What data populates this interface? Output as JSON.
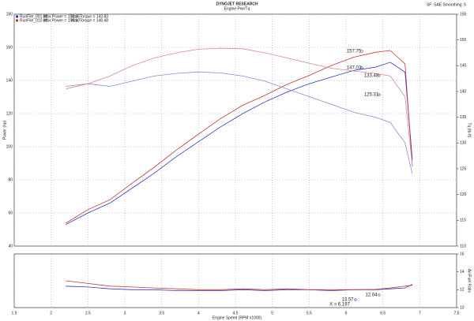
{
  "header": {
    "title": "DYNOJET RESEARCH",
    "subtitle": "Engine Pwr/Tq",
    "settings": "SF: SAE  Smoothing: 5"
  },
  "legend_notes": [
    [
      "Max Power = 151.65",
      "Max Torque = 143.83"
    ],
    [
      "Max Power = 158.10",
      "Max Torque = 148.48"
    ]
  ],
  "annotations": [
    "157.75",
    "147.03",
    "133.48",
    "125.31",
    "12.04",
    "13.57",
    "X = 6.197"
  ],
  "chart_data": [
    {
      "type": "line",
      "xlabel": "Engine Speed (RPM x1000)",
      "ylabel": "Power (hp)",
      "y2label": "Tq (lb-ft)",
      "x": [
        2.2,
        2.5,
        2.8,
        3.1,
        3.4,
        3.7,
        4.0,
        4.3,
        4.6,
        4.9,
        5.2,
        5.5,
        5.8,
        6.1,
        6.4,
        6.6,
        6.8,
        6.9
      ],
      "xlim": [
        1.5,
        7.5
      ],
      "xticks": [
        1.5,
        2.0,
        2.5,
        3.0,
        3.5,
        4.0,
        4.5,
        5.0,
        5.5,
        6.0,
        6.5,
        7.0,
        7.5
      ],
      "ylim": [
        40,
        180
      ],
      "yticks": [
        40,
        60,
        80,
        100,
        120,
        140,
        160,
        180
      ],
      "y2lim": [
        110,
        155
      ],
      "y2ticks": [
        110,
        115,
        120,
        125,
        130,
        135,
        140,
        145,
        150,
        155
      ],
      "grid": true,
      "series": [
        {
          "name": "RunFile_001.drf",
          "color": "#3535c8",
          "values": [
            53,
            60,
            66,
            75,
            84,
            94,
            103,
            112,
            120,
            127,
            133,
            138,
            142,
            146,
            148,
            151,
            145,
            92
          ]
        },
        {
          "name": "RunFile_010.drf",
          "color": "#c83535",
          "values": [
            53.8,
            62,
            68,
            78,
            87.6,
            98,
            107.6,
            117,
            125,
            131,
            137.6,
            143,
            149,
            154,
            157,
            158.1,
            150,
            88
          ]
        },
        {
          "color": "#8a8ad8",
          "axis": "y2",
          "values": [
            141,
            141.5,
            141,
            142,
            143,
            143.5,
            143.8,
            143.6,
            143,
            142,
            140.5,
            139,
            137.5,
            136,
            135,
            134,
            130,
            124
          ]
        },
        {
          "color": "#d88a8a",
          "axis": "y2",
          "values": [
            140.5,
            141.5,
            143,
            145,
            146.5,
            147.5,
            148.2,
            148.4,
            148.3,
            147.5,
            146.5,
            145.5,
            144.5,
            144,
            143.5,
            143,
            139,
            125.6
          ]
        }
      ]
    },
    {
      "type": "line",
      "ylabel": "Air/Fuel Ratio",
      "x": [
        2.2,
        2.5,
        2.8,
        3.1,
        3.4,
        3.7,
        4.0,
        4.3,
        4.6,
        4.9,
        5.2,
        5.5,
        5.8,
        6.1,
        6.4,
        6.6,
        6.8,
        6.9
      ],
      "xlim": [
        1.5,
        7.5
      ],
      "xticks": [
        1.5,
        2.0,
        2.5,
        3.0,
        3.5,
        4.0,
        4.5,
        5.0,
        5.5,
        6.0,
        6.5,
        7.0,
        7.5
      ],
      "ylim": [
        10,
        16
      ],
      "yticks": [
        10,
        12,
        14,
        16
      ],
      "series": [
        {
          "color": "#3535c8",
          "values": [
            12.4,
            12.3,
            12.1,
            12.0,
            12.0,
            11.9,
            11.9,
            11.9,
            12.0,
            11.9,
            12.0,
            12.0,
            11.9,
            12.0,
            12.0,
            12.1,
            12.2,
            12.6
          ]
        },
        {
          "color": "#c83535",
          "values": [
            13.0,
            12.7,
            12.4,
            12.3,
            12.2,
            12.1,
            12.0,
            12.0,
            12.1,
            12.0,
            12.1,
            12.0,
            12.0,
            12.0,
            12.04,
            12.2,
            12.4,
            12.5
          ]
        }
      ]
    }
  ]
}
